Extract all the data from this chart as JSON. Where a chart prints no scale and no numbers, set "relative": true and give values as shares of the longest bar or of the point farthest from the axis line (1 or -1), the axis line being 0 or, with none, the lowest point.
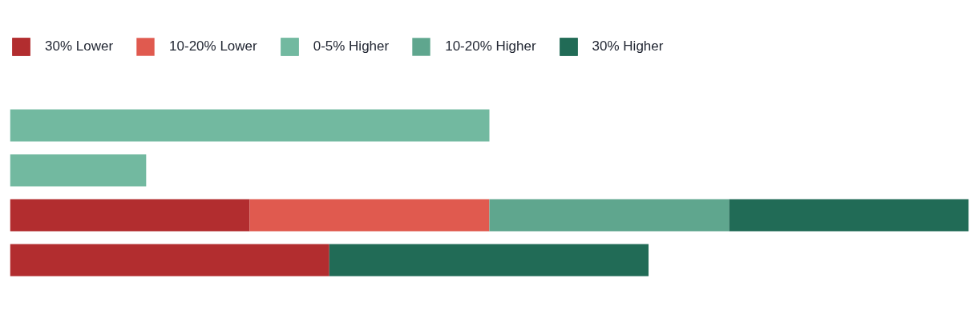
{
  "chart_data": {
    "type": "bar",
    "orientation": "horizontal",
    "stacked": true,
    "relative": true,
    "grid": false,
    "legend": "top left",
    "categories": [
      null,
      null,
      null,
      null
    ],
    "series": [
      {
        "name": "30% Lower",
        "color": "#b22d2f",
        "values": [
          null,
          null,
          0.25,
          0.333
        ]
      },
      {
        "name": "10-20% Lower",
        "color": "#e05a4f",
        "values": [
          null,
          null,
          0.25,
          null
        ]
      },
      {
        "name": "0-5% Higher",
        "color": "#72b9a0",
        "values": [
          0.5,
          0.142,
          null,
          null
        ]
      },
      {
        "name": "10-20% Higher",
        "color": "#5fa68e",
        "values": [
          null,
          null,
          0.25,
          null
        ]
      },
      {
        "name": "30% Higher",
        "color": "#216b56",
        "values": [
          null,
          null,
          0.25,
          0.333
        ]
      }
    ]
  }
}
